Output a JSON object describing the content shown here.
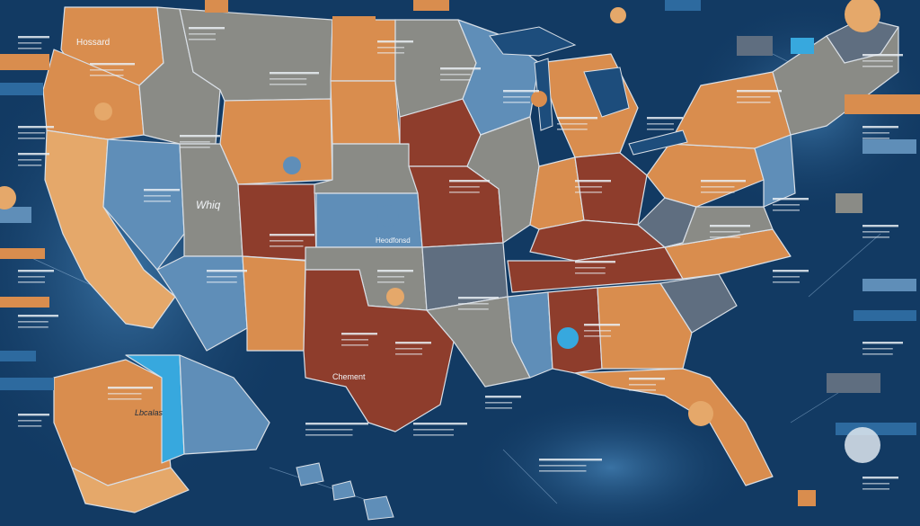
{
  "map": {
    "palette": {
      "ocean": "#123a63",
      "ocean_light": "#2d6a9f",
      "land_gray": "#8a8b86",
      "land_orange": "#d98d4e",
      "land_light_orange": "#e5a86a",
      "land_rust": "#8e3d2c",
      "land_blue": "#5f8eb8",
      "land_cyan": "#37a8de",
      "land_slate": "#5f6e80",
      "border": "#d9dfe6"
    },
    "label_texts": {
      "wa": "Hossard",
      "ut": "Whiq",
      "ne": "Heodfonsd",
      "ar": "Chement",
      "ak": "Lbcalas"
    },
    "legend_bars": 14,
    "icon_names": [
      "location-pin-icon",
      "badge-icon",
      "circle-marker-icon"
    ]
  }
}
